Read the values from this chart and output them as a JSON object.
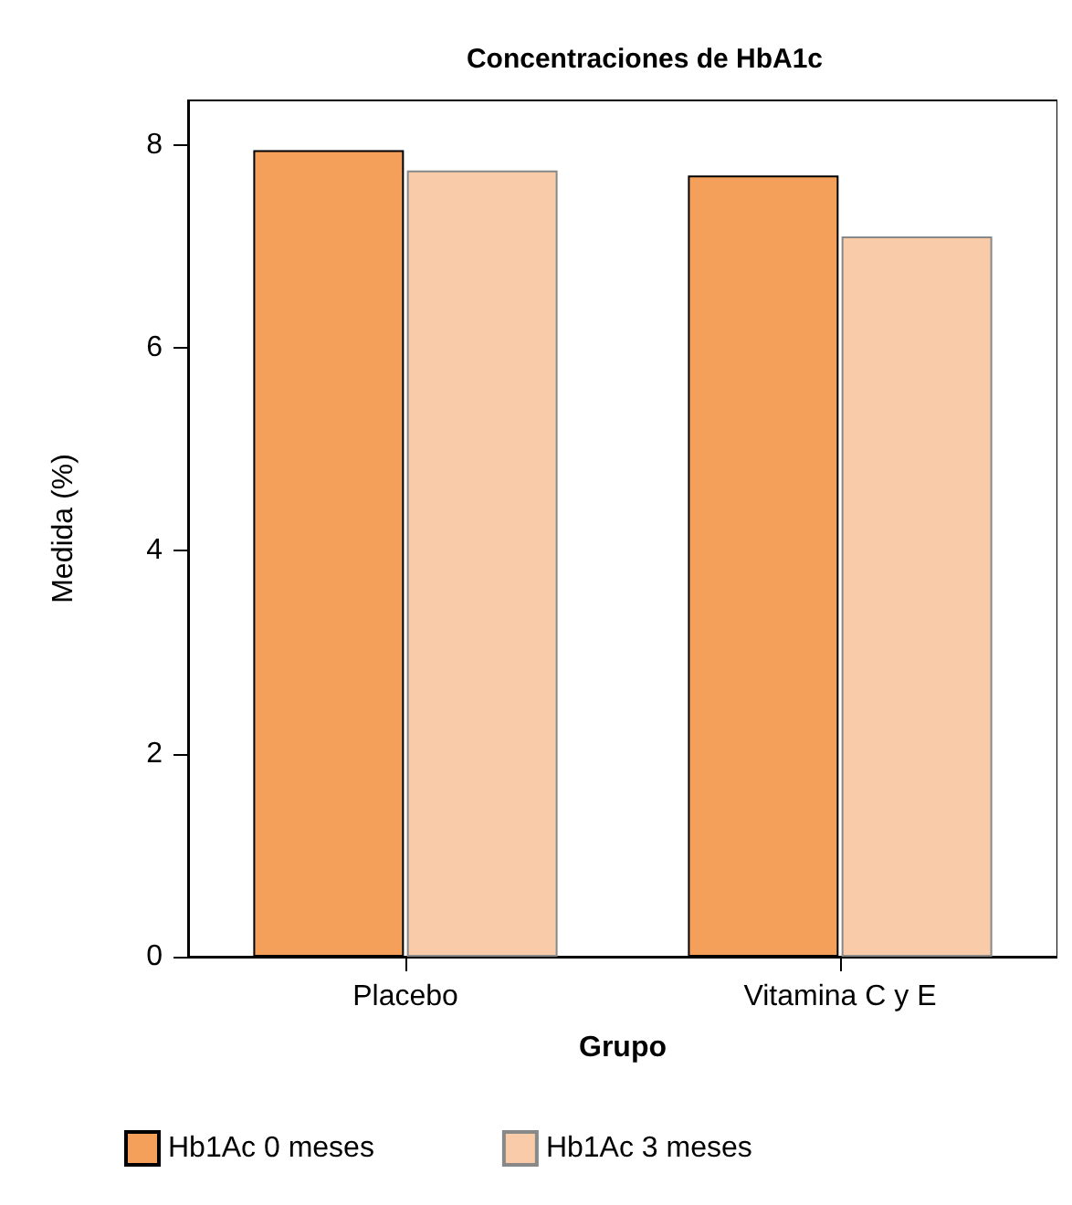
{
  "chart_data": {
    "type": "bar",
    "title": "Concentraciones de HbA1c",
    "xlabel": "Grupo",
    "ylabel": "Medida (%)",
    "categories": [
      "Placebo",
      "Vitamina C y E"
    ],
    "series": [
      {
        "name": "Hb1Ac 0 meses",
        "color": "#f5a05a",
        "values": [
          7.95,
          7.7
        ]
      },
      {
        "name": "Hb1Ac 3 meses",
        "color": "#f9cba8",
        "values": [
          7.75,
          7.1
        ]
      }
    ],
    "ylim": [
      0,
      8.44
    ],
    "yticks": [
      0,
      2,
      4,
      6,
      8
    ],
    "grid": false,
    "legend": "bottom"
  }
}
